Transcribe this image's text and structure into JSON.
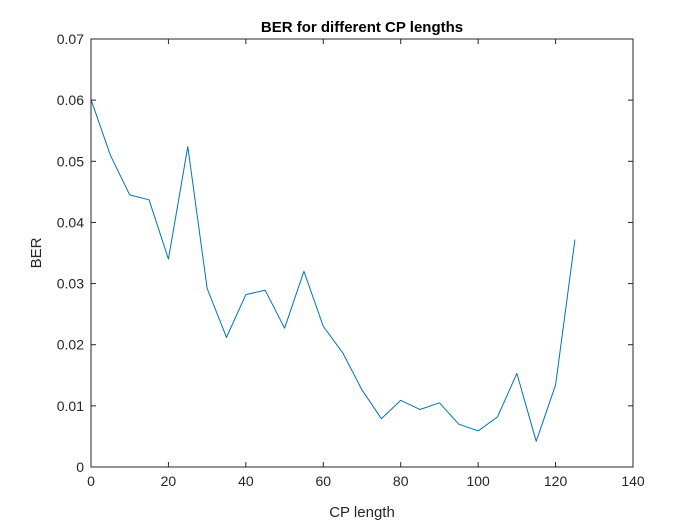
{
  "chart_data": {
    "type": "line",
    "title": "BER for different CP lengths",
    "xlabel": "CP length",
    "ylabel": "BER",
    "xlim": [
      0,
      140
    ],
    "ylim": [
      0,
      0.07
    ],
    "xticks": [
      0,
      20,
      40,
      60,
      80,
      100,
      120,
      140
    ],
    "xtick_labels": [
      "0",
      "20",
      "40",
      "60",
      "80",
      "100",
      "120",
      "140"
    ],
    "yticks": [
      0,
      0.01,
      0.02,
      0.03,
      0.04,
      0.05,
      0.06,
      0.07
    ],
    "ytick_labels": [
      "0",
      "0.01",
      "0.02",
      "0.03",
      "0.04",
      "0.05",
      "0.06",
      "0.07"
    ],
    "grid": false,
    "box": true,
    "series": [
      {
        "color": "#0072BD",
        "x": [
          0,
          5,
          10,
          15,
          20,
          25,
          30,
          35,
          40,
          45,
          50,
          55,
          60,
          65,
          70,
          75,
          80,
          85,
          90,
          95,
          100,
          105,
          110,
          115,
          120,
          125
        ],
        "y": [
          0.0601,
          0.051,
          0.0445,
          0.0437,
          0.034,
          0.0524,
          0.0292,
          0.0212,
          0.0282,
          0.0289,
          0.0227,
          0.032,
          0.023,
          0.0187,
          0.0126,
          0.0079,
          0.0109,
          0.0094,
          0.0105,
          0.007,
          0.0059,
          0.0082,
          0.0153,
          0.0042,
          0.0134,
          0.0372
        ]
      }
    ]
  }
}
